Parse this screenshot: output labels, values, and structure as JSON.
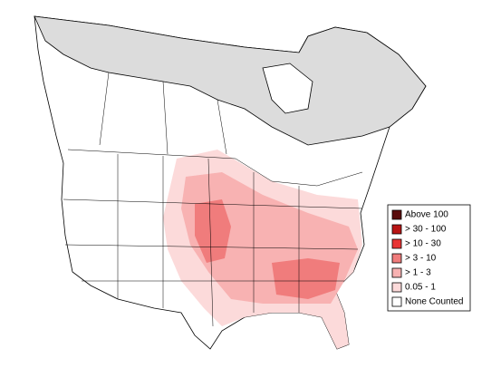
{
  "legend": {
    "items": [
      {
        "label": "Above 100",
        "color": "#5a0c0c"
      },
      {
        "label": "> 30 - 100",
        "color": "#b81414"
      },
      {
        "label": "> 10 - 30",
        "color": "#e83434"
      },
      {
        "label": "> 3 - 10",
        "color": "#f07c7c"
      },
      {
        "label": "> 1 - 3",
        "color": "#f8b2b2"
      },
      {
        "label": "0.05 - 1",
        "color": "#fcdada"
      },
      {
        "label": "None Counted",
        "color": "#ffffff"
      }
    ]
  }
}
